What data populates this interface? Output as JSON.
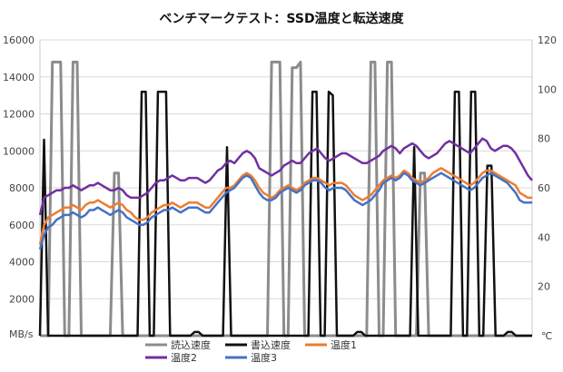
{
  "chart_data": {
    "type": "line",
    "title": "ベンチマークテスト：SSD温度と転送速度",
    "xlabel": "",
    "y_left_unit": "MB/s",
    "y_right_unit": "℃",
    "ylim_left": [
      0,
      16000
    ],
    "ylim_right": [
      0,
      120
    ],
    "yticks_left": [
      "0",
      "2000",
      "4000",
      "6000",
      "8000",
      "10000",
      "12000",
      "14000",
      "16000"
    ],
    "yticks_right": [
      "0",
      "20",
      "40",
      "60",
      "80",
      "100",
      "120"
    ],
    "grid": true,
    "legend_position": "bottom",
    "x_count": 120,
    "series": [
      {
        "name": "読込速度",
        "axis": "left",
        "color": "#8c8c8c",
        "width": 3,
        "values": [
          0,
          0,
          0,
          14800,
          14800,
          14800,
          0,
          0,
          14800,
          14800,
          0,
          0,
          0,
          0,
          0,
          0,
          0,
          0,
          8800,
          8800,
          0,
          0,
          0,
          0,
          0,
          0,
          0,
          0,
          0,
          0,
          0,
          0,
          0,
          0,
          0,
          0,
          0,
          0,
          0,
          0,
          0,
          0,
          0,
          0,
          0,
          0,
          0,
          0,
          0,
          0,
          0,
          0,
          0,
          0,
          0,
          0,
          14800,
          14800,
          14800,
          0,
          0,
          14500,
          14500,
          14800,
          0,
          0,
          0,
          0,
          0,
          0,
          0,
          0,
          0,
          0,
          0,
          0,
          0,
          0,
          0,
          0,
          14800,
          14800,
          0,
          0,
          14800,
          14800,
          0,
          0,
          0,
          0,
          0,
          0,
          8800,
          8800,
          0,
          0,
          0,
          0,
          0,
          0,
          0,
          0,
          0,
          0,
          0,
          0,
          0,
          0,
          0,
          0,
          0,
          0,
          0,
          0,
          0,
          0,
          0,
          0,
          0,
          0
        ]
      },
      {
        "name": "書込速度",
        "axis": "left",
        "color": "#111111",
        "width": 2.5,
        "values": [
          0,
          10600,
          0,
          0,
          0,
          0,
          0,
          0,
          0,
          0,
          0,
          0,
          0,
          0,
          0,
          0,
          0,
          0,
          0,
          0,
          0,
          0,
          0,
          0,
          0,
          13200,
          13200,
          0,
          0,
          13200,
          13200,
          13200,
          0,
          0,
          0,
          0,
          0,
          0,
          200,
          200,
          0,
          0,
          0,
          0,
          0,
          0,
          10200,
          0,
          0,
          0,
          0,
          0,
          0,
          0,
          0,
          0,
          0,
          0,
          0,
          0,
          0,
          0,
          0,
          0,
          0,
          0,
          0,
          13200,
          13200,
          0,
          0,
          13200,
          13000,
          0,
          0,
          0,
          0,
          0,
          200,
          200,
          0,
          0,
          0,
          0,
          0,
          0,
          0,
          0,
          0,
          0,
          0,
          0,
          10200,
          0,
          0,
          0,
          0,
          0,
          0,
          0,
          0,
          0,
          13200,
          13200,
          0,
          0,
          13200,
          13200,
          0,
          0,
          9200,
          9200,
          0,
          0,
          0,
          200,
          200,
          0,
          0,
          0,
          0,
          0
        ]
      },
      {
        "name": "温度1",
        "axis": "right",
        "color": "#ed7d31",
        "width": 2.5,
        "values": [
          37,
          45,
          48,
          49,
          50,
          51,
          52,
          52,
          53,
          52,
          51,
          53,
          54,
          54,
          55,
          54,
          53,
          52,
          53,
          54,
          53,
          51,
          50,
          48,
          47,
          47,
          48,
          50,
          51,
          52,
          53,
          53,
          54,
          53,
          52,
          53,
          54,
          54,
          54,
          53,
          52,
          52,
          54,
          56,
          58,
          60,
          60,
          61,
          63,
          65,
          66,
          65,
          63,
          60,
          58,
          57,
          56,
          57,
          59,
          60,
          61,
          60,
          59,
          60,
          62,
          63,
          64,
          64,
          63,
          62,
          61,
          62,
          62,
          62,
          61,
          59,
          57,
          56,
          55,
          56,
          57,
          59,
          61,
          63,
          64,
          65,
          64,
          65,
          67,
          66,
          64,
          63,
          62,
          63,
          64,
          66,
          67,
          68,
          67,
          66,
          65,
          64,
          63,
          62,
          61,
          62,
          64,
          66,
          67,
          67,
          66,
          65,
          64,
          63,
          62,
          61,
          58,
          57,
          56,
          56
        ]
      },
      {
        "name": "温度2",
        "axis": "right",
        "color": "#7030a0",
        "width": 2.5,
        "values": [
          49,
          56,
          57,
          58,
          59,
          59,
          60,
          60,
          61,
          60,
          59,
          60,
          61,
          61,
          62,
          61,
          60,
          59,
          59,
          60,
          59,
          57,
          56,
          56,
          56,
          57,
          58,
          60,
          62,
          63,
          63,
          64,
          65,
          64,
          63,
          63,
          64,
          64,
          64,
          63,
          62,
          63,
          65,
          67,
          68,
          70,
          71,
          70,
          72,
          74,
          75,
          74,
          72,
          68,
          67,
          66,
          65,
          66,
          67,
          69,
          70,
          71,
          70,
          70,
          72,
          74,
          75,
          76,
          74,
          72,
          71,
          72,
          73,
          74,
          74,
          73,
          72,
          71,
          70,
          70,
          71,
          72,
          73,
          75,
          76,
          77,
          76,
          74,
          76,
          77,
          78,
          77,
          75,
          73,
          72,
          73,
          74,
          76,
          78,
          79,
          78,
          77,
          76,
          75,
          74,
          76,
          78,
          80,
          79,
          76,
          75,
          76,
          77,
          77,
          76,
          74,
          71,
          68,
          65,
          63
        ]
      },
      {
        "name": "温度3",
        "axis": "right",
        "color": "#4472c4",
        "width": 2.5,
        "values": [
          35,
          41,
          44,
          45,
          47,
          48,
          49,
          49,
          50,
          49,
          48,
          49,
          51,
          51,
          52,
          51,
          50,
          49,
          50,
          51,
          50,
          48,
          47,
          46,
          45,
          45,
          46,
          48,
          49,
          50,
          51,
          51,
          52,
          51,
          50,
          51,
          52,
          52,
          52,
          51,
          50,
          50,
          52,
          54,
          56,
          58,
          59,
          60,
          62,
          64,
          65,
          64,
          61,
          58,
          56,
          55,
          55,
          56,
          58,
          59,
          60,
          59,
          58,
          59,
          61,
          62,
          63,
          63,
          62,
          60,
          59,
          60,
          60,
          60,
          59,
          57,
          55,
          54,
          53,
          54,
          55,
          57,
          59,
          62,
          63,
          64,
          63,
          64,
          66,
          65,
          63,
          62,
          61,
          62,
          63,
          64,
          65,
          66,
          65,
          64,
          63,
          62,
          61,
          60,
          59,
          60,
          62,
          64,
          65,
          66,
          65,
          64,
          63,
          62,
          60,
          58,
          55,
          54,
          54,
          54
        ]
      }
    ]
  }
}
